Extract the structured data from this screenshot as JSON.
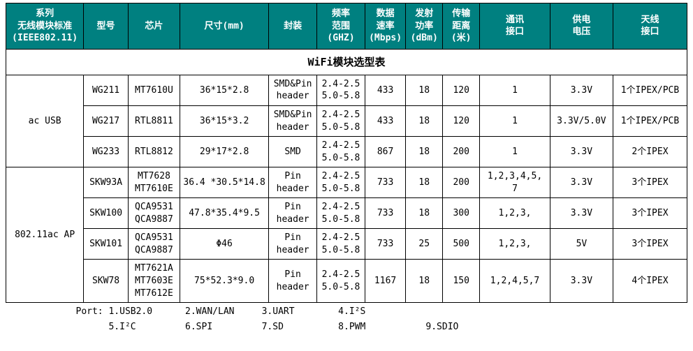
{
  "title": "WiFi模块选型表",
  "colors": {
    "header_bg": "#008080",
    "header_fg": "#ffffff",
    "border": "#000000",
    "page_bg": "#ffffff",
    "text": "#000000"
  },
  "columns": [
    "系列\n无线模块标准\n(IEEE802.11)",
    "型号",
    "芯片",
    "尺寸(mm)",
    "封装",
    "频率\n范围\n(GHZ)",
    "数据\n速率\n(Mbps)",
    "发射\n功率\n(dBm)",
    "传输\n距离\n(米)",
    "通讯\n接口",
    "供电\n电压",
    "天线\n接口"
  ],
  "groups": [
    {
      "series": "ac USB",
      "rows": [
        {
          "model": "WG211",
          "chip": "MT7610U",
          "size": "36*15*2.8",
          "pkg": "SMD&Pin\nheader",
          "freq": "2.4-2.5\n5.0-5.8",
          "rate": "433",
          "tx": "18",
          "dist": "120",
          "port": "1",
          "volt": "3.3V",
          "ant": "1个IPEX/PCB"
        },
        {
          "model": "WG217",
          "chip": "RTL8811",
          "size": "36*15*3.2",
          "pkg": "SMD&Pin\nheader",
          "freq": "2.4-2.5\n5.0-5.8",
          "rate": "433",
          "tx": "18",
          "dist": "120",
          "port": "1",
          "volt": "3.3V/5.0V",
          "ant": "1个IPEX/PCB"
        },
        {
          "model": "WG233",
          "chip": "RTL8812",
          "size": "29*17*2.8",
          "pkg": "SMD",
          "freq": "2.4-2.5\n5.0-5.8",
          "rate": "867",
          "tx": "18",
          "dist": "200",
          "port": "1",
          "volt": "3.3V",
          "ant": "2个IPEX"
        }
      ]
    },
    {
      "series": "802.11ac AP",
      "rows": [
        {
          "model": "SKW93A",
          "chip": "MT7628\nMT7610E",
          "size": "36.4 *30.5*14.8",
          "pkg": "Pin\nheader",
          "freq": "2.4-2.5\n5.0-5.8",
          "rate": "733",
          "tx": "18",
          "dist": "200",
          "port": "1,2,3,4,5,\n7",
          "volt": "3.3V",
          "ant": "3个IPEX"
        },
        {
          "model": "SKW100",
          "chip": "QCA9531\nQCA9887",
          "size": "47.8*35.4*9.5",
          "pkg": "Pin\nheader",
          "freq": "2.4-2.5\n5.0-5.8",
          "rate": "733",
          "tx": "18",
          "dist": "300",
          "port": "1,2,3,",
          "volt": "3.3V",
          "ant": "3个IPEX"
        },
        {
          "model": "SKW101",
          "chip": "QCA9531\nQCA9887",
          "size": "Φ46",
          "pkg": "Pin\nheader",
          "freq": "2.4-2.5\n5.0-5.8",
          "rate": "733",
          "tx": "25",
          "dist": "500",
          "port": "1,2,3,",
          "volt": "5V",
          "ant": "3个IPEX"
        },
        {
          "model": "SKW78",
          "chip": "MT7621A\nMT7603E\nMT7612E",
          "size": "75*52.3*9.0",
          "pkg": "Pin\nheader",
          "freq": "2.4-2.5\n5.0-5.8",
          "rate": "1167",
          "tx": "18",
          "dist": "150",
          "port": "1,2,4,5,7",
          "volt": "3.3V",
          "ant": "4个IPEX"
        }
      ]
    }
  ],
  "legend": {
    "line1": "Port: 1.USB2.0      2.WAN/LAN     3.UART        4.I²S",
    "line2": "      5.I²C         6.SPI         7.SD          8.PWM           9.SDIO"
  }
}
